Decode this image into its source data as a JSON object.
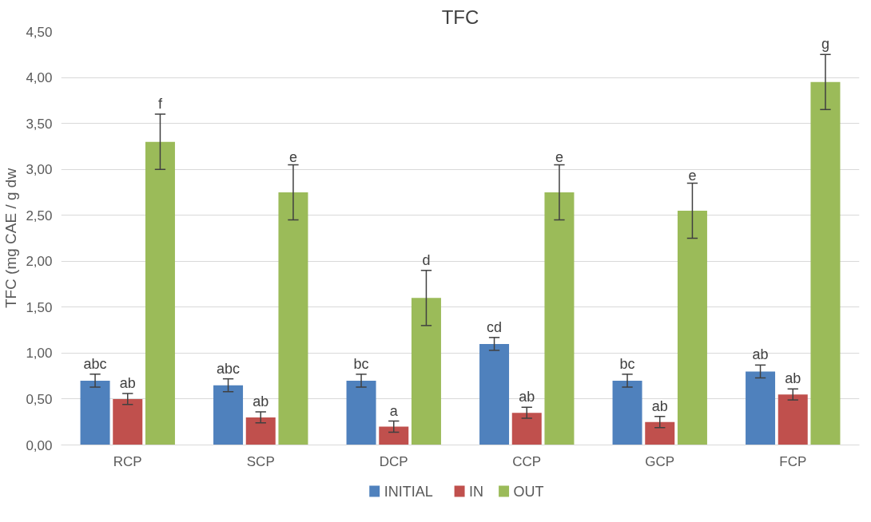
{
  "chart_data": {
    "type": "bar",
    "title": "TFC",
    "ylabel": "TFC (mg CAE / g dw",
    "categories": [
      "RCP",
      "SCP",
      "DCP",
      "CCP",
      "GCP",
      "FCP"
    ],
    "series": [
      {
        "name": "INITIAL",
        "color": "#4f81bd",
        "values": [
          0.7,
          0.65,
          0.7,
          1.1,
          0.7,
          0.8
        ],
        "errors": [
          0.07,
          0.07,
          0.07,
          0.07,
          0.07,
          0.07
        ],
        "value_labels": [
          "abc",
          "abc",
          "bc",
          "cd",
          "bc",
          "ab"
        ]
      },
      {
        "name": "IN",
        "color": "#c0504d",
        "values": [
          0.5,
          0.3,
          0.2,
          0.35,
          0.25,
          0.55
        ],
        "errors": [
          0.06,
          0.06,
          0.06,
          0.06,
          0.06,
          0.06
        ],
        "value_labels": [
          "ab",
          "ab",
          "a",
          "ab",
          "ab",
          "ab"
        ]
      },
      {
        "name": "OUT",
        "color": "#9bbb59",
        "values": [
          3.3,
          2.75,
          1.6,
          2.75,
          2.55,
          3.95
        ],
        "errors": [
          0.3,
          0.3,
          0.3,
          0.3,
          0.3,
          0.3
        ],
        "value_labels": [
          "f",
          "e",
          "d",
          "e",
          "e",
          "g"
        ]
      }
    ],
    "ylim": [
      0,
      4.5
    ],
    "yticks": [
      {
        "value": 0,
        "label": "0,00"
      },
      {
        "value": 0.5,
        "label": "0,50"
      },
      {
        "value": 1,
        "label": "1,00"
      },
      {
        "value": 1.5,
        "label": "1,50"
      },
      {
        "value": 2,
        "label": "2,00"
      },
      {
        "value": 2.5,
        "label": "2,50"
      },
      {
        "value": 3,
        "label": "3,00"
      },
      {
        "value": 3.5,
        "label": "3,50"
      },
      {
        "value": 4,
        "label": "4,00"
      },
      {
        "value": 4.5,
        "label": "4,50"
      }
    ],
    "grid": "y",
    "legend": "bottom"
  }
}
